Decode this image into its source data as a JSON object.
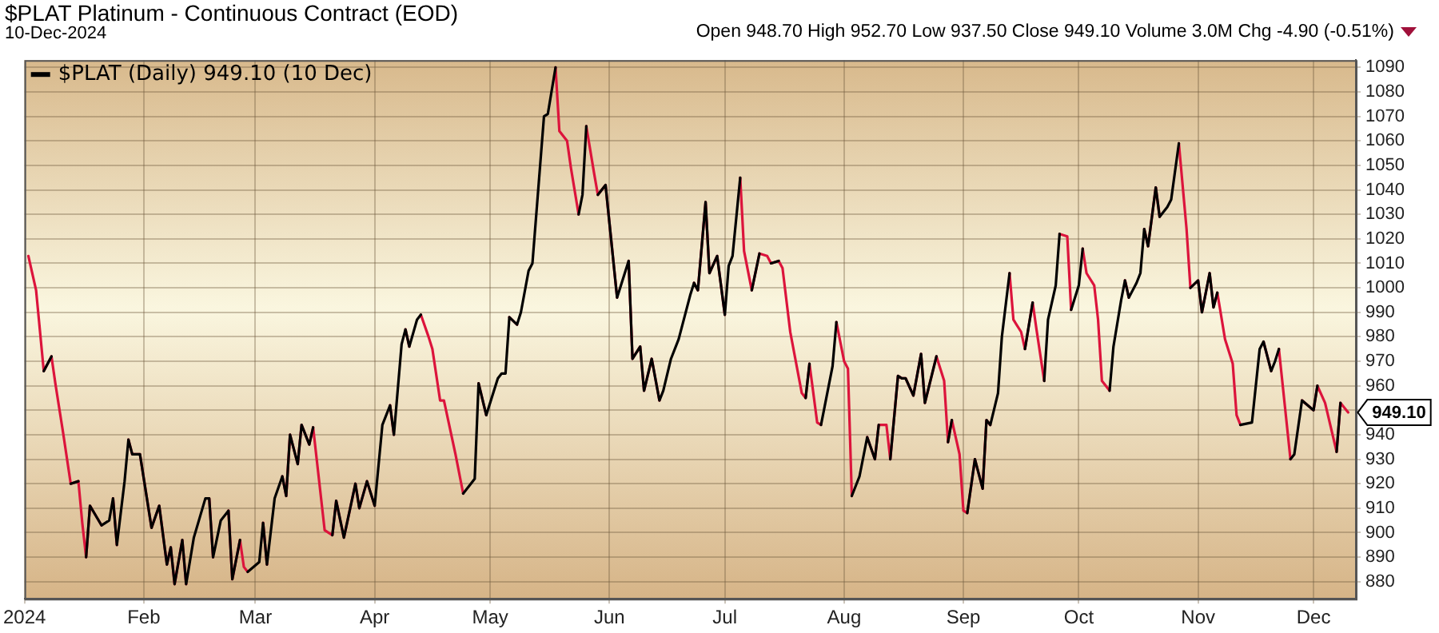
{
  "chart_data": {
    "type": "line",
    "title": "$PLAT Platinum - Continuous Contract (EOD)",
    "subtitle": "10-Dec-2024",
    "annotations": [
      "Open 948.70  High 952.70  Low 937.50  Close 949.10  Volume 3.0M  Chg -4.90 (-0.51%)",
      {
        "text": "949.10",
        "x": "2024-12-10",
        "y": 949.1
      }
    ],
    "x": [
      "2024-01-02",
      "2024-01-04",
      "2024-01-06",
      "2024-01-08",
      "2024-01-09",
      "2024-01-11",
      "2024-01-13",
      "2024-01-15",
      "2024-01-16",
      "2024-01-17",
      "2024-01-18",
      "2024-01-21",
      "2024-01-23",
      "2024-01-24",
      "2024-01-25",
      "2024-01-27",
      "2024-01-28",
      "2024-01-29",
      "2024-01-31",
      "2024-02-03",
      "2024-02-05",
      "2024-02-07",
      "2024-02-08",
      "2024-02-09",
      "2024-02-11",
      "2024-02-12",
      "2024-02-14",
      "2024-02-17",
      "2024-02-18",
      "2024-02-19",
      "2024-02-21",
      "2024-02-23",
      "2024-02-24",
      "2024-02-26",
      "2024-02-27",
      "2024-02-28",
      "2024-03-02",
      "2024-03-03",
      "2024-03-04",
      "2024-03-06",
      "2024-03-08",
      "2024-03-09",
      "2024-03-10",
      "2024-03-12",
      "2024-03-13",
      "2024-03-15",
      "2024-03-16",
      "2024-03-19",
      "2024-03-21",
      "2024-03-22",
      "2024-03-24",
      "2024-03-27",
      "2024-03-28",
      "2024-03-30",
      "2024-04-01",
      "2024-04-03",
      "2024-04-05",
      "2024-04-06",
      "2024-04-08",
      "2024-04-09",
      "2024-04-10",
      "2024-04-12",
      "2024-04-13",
      "2024-04-15",
      "2024-04-16",
      "2024-04-18",
      "2024-04-19",
      "2024-04-22",
      "2024-04-24",
      "2024-04-26",
      "2024-04-27",
      "2024-04-28",
      "2024-04-30",
      "2024-05-03",
      "2024-05-04",
      "2024-05-05",
      "2024-05-06",
      "2024-05-08",
      "2024-05-09",
      "2024-05-11",
      "2024-05-12",
      "2024-05-15",
      "2024-05-16",
      "2024-05-18",
      "2024-05-19",
      "2024-05-21",
      "2024-05-22",
      "2024-05-24",
      "2024-05-25",
      "2024-05-26",
      "2024-05-28",
      "2024-05-29",
      "2024-05-31",
      "2024-06-03",
      "2024-06-04",
      "2024-06-06",
      "2024-06-07",
      "2024-06-09",
      "2024-06-10",
      "2024-06-12",
      "2024-06-14",
      "2024-06-15",
      "2024-06-17",
      "2024-06-19",
      "2024-06-22",
      "2024-06-23",
      "2024-06-24",
      "2024-06-26",
      "2024-06-27",
      "2024-06-29",
      "2024-07-01",
      "2024-07-02",
      "2024-07-03",
      "2024-07-05",
      "2024-07-06",
      "2024-07-08",
      "2024-07-10",
      "2024-07-12",
      "2024-07-13",
      "2024-07-15",
      "2024-07-16",
      "2024-07-18",
      "2024-07-21",
      "2024-07-22",
      "2024-07-23",
      "2024-07-25",
      "2024-07-26",
      "2024-07-29",
      "2024-07-30",
      "2024-08-01",
      "2024-08-02",
      "2024-08-03",
      "2024-08-05",
      "2024-08-07",
      "2024-08-09",
      "2024-08-10",
      "2024-08-12",
      "2024-08-13",
      "2024-08-15",
      "2024-08-16",
      "2024-08-17",
      "2024-08-19",
      "2024-08-21",
      "2024-08-22",
      "2024-08-25",
      "2024-08-27",
      "2024-08-28",
      "2024-08-29",
      "2024-08-31",
      "2024-09-01",
      "2024-09-02",
      "2024-09-04",
      "2024-09-06",
      "2024-09-07",
      "2024-09-08",
      "2024-09-10",
      "2024-09-11",
      "2024-09-13",
      "2024-09-14",
      "2024-09-16",
      "2024-09-17",
      "2024-09-19",
      "2024-09-20",
      "2024-09-22",
      "2024-09-23",
      "2024-09-25",
      "2024-09-26",
      "2024-09-28",
      "2024-09-29",
      "2024-10-01",
      "2024-10-02",
      "2024-10-03",
      "2024-10-05",
      "2024-10-06",
      "2024-10-07",
      "2024-10-09",
      "2024-10-10",
      "2024-10-12",
      "2024-10-13",
      "2024-10-14",
      "2024-10-16",
      "2024-10-17",
      "2024-10-18",
      "2024-10-19",
      "2024-10-21",
      "2024-10-22",
      "2024-10-24",
      "2024-10-25",
      "2024-10-27",
      "2024-10-29",
      "2024-10-30",
      "2024-11-01",
      "2024-11-02",
      "2024-11-04",
      "2024-11-05",
      "2024-11-06",
      "2024-11-08",
      "2024-11-10",
      "2024-11-11",
      "2024-11-12",
      "2024-11-15",
      "2024-11-17",
      "2024-11-18",
      "2024-11-20",
      "2024-11-21",
      "2024-11-22",
      "2024-11-24",
      "2024-11-25",
      "2024-11-26",
      "2024-11-28",
      "2024-12-01",
      "2024-12-02",
      "2024-12-04",
      "2024-12-07",
      "2024-12-08",
      "2024-12-10"
    ],
    "series": [
      {
        "name": "$PLAT (Daily) 949.10 (10 Dec)",
        "color": "#000000",
        "values": [
          null,
          null,
          966,
          972,
          null,
          null,
          920,
          921,
          null,
          890,
          911,
          903,
          905,
          914,
          895,
          921,
          938,
          932,
          932,
          902,
          911,
          887,
          894,
          879,
          897,
          879,
          898,
          914,
          914,
          890,
          905,
          909,
          881,
          897,
          null,
          884,
          888,
          904,
          887,
          914,
          923,
          915,
          940,
          928,
          944,
          936,
          943,
          null,
          899,
          913,
          898,
          920,
          910,
          921,
          911,
          944,
          952,
          940,
          977,
          983,
          976,
          987,
          989,
          null,
          null,
          null,
          null,
          null,
          916,
          920,
          922,
          961,
          948,
          963,
          965,
          965,
          988,
          985,
          990,
          1007,
          1010,
          1070,
          1071,
          1090,
          null,
          null,
          null,
          1030,
          1038,
          1066,
          null,
          1038,
          1042,
          996,
          1001,
          1011,
          971,
          976,
          958,
          971,
          954,
          958,
          971,
          979,
          997,
          1002,
          999,
          1035,
          1006,
          1013,
          989,
          1009,
          1013,
          1045,
          null,
          999,
          1014,
          null,
          1010,
          1011,
          null,
          null,
          null,
          955,
          969,
          null,
          944,
          968,
          986,
          null,
          null,
          915,
          923,
          939,
          930,
          944,
          null,
          930,
          964,
          963,
          963,
          956,
          973,
          953,
          972,
          null,
          937,
          946,
          null,
          null,
          908,
          930,
          918,
          946,
          944,
          957,
          980,
          1006,
          null,
          null,
          975,
          994,
          null,
          962,
          987,
          1001,
          1022,
          null,
          991,
          1001,
          1016,
          null,
          null,
          null,
          null,
          958,
          976,
          995,
          1003,
          996,
          1002,
          1006,
          1024,
          1017,
          1041,
          1029,
          1033,
          1036,
          1059,
          null,
          1000,
          1003,
          990,
          1006,
          992,
          998,
          null,
          null,
          null,
          944,
          945,
          975,
          978,
          966,
          970,
          975,
          null,
          930,
          932,
          954,
          950,
          960,
          null,
          933,
          953,
          null
        ]
      },
      {
        "color": "#dc143c",
        "values": [
          1013,
          999,
          966,
          972,
          961,
          941,
          920,
          921,
          904,
          890,
          911,
          903,
          null,
          914,
          895,
          null,
          938,
          932,
          932,
          902,
          911,
          887,
          894,
          879,
          897,
          879,
          null,
          null,
          914,
          890,
          null,
          909,
          881,
          897,
          886,
          884,
          null,
          904,
          887,
          null,
          923,
          915,
          940,
          928,
          944,
          936,
          943,
          901,
          899,
          913,
          898,
          920,
          910,
          921,
          911,
          null,
          952,
          940,
          null,
          983,
          976,
          null,
          989,
          980,
          975,
          954,
          954,
          932,
          916,
          null,
          null,
          961,
          948,
          null,
          null,
          null,
          988,
          985,
          null,
          null,
          null,
          null,
          null,
          1090,
          1064,
          1060,
          1049,
          1030,
          null,
          1066,
          1047,
          1038,
          1042,
          996,
          null,
          1011,
          971,
          976,
          958,
          971,
          954,
          null,
          null,
          null,
          null,
          1002,
          999,
          1035,
          1006,
          1013,
          989,
          null,
          null,
          1045,
          1015,
          999,
          1014,
          1013,
          1010,
          1011,
          1008,
          982,
          957,
          955,
          969,
          945,
          944,
          null,
          986,
          970,
          967,
          915,
          null,
          939,
          930,
          944,
          944,
          930,
          964,
          963,
          963,
          956,
          973,
          953,
          972,
          962,
          937,
          946,
          932,
          909,
          908,
          930,
          918,
          946,
          944,
          null,
          null,
          1006,
          987,
          982,
          975,
          994,
          983,
          962,
          null,
          null,
          1022,
          1021,
          991,
          null,
          1016,
          1006,
          1001,
          987,
          962,
          958,
          null,
          null,
          1003,
          996,
          null,
          null,
          1024,
          1017,
          1041,
          1029,
          null,
          null,
          1059,
          1024,
          1000,
          1003,
          990,
          1006,
          992,
          998,
          979,
          969,
          948,
          944,
          null,
          null,
          978,
          966,
          null,
          975,
          945,
          930,
          null,
          954,
          950,
          960,
          953,
          933,
          953,
          949.1
        ]
      }
    ],
    "xlim": [
      "2024-01-01",
      "2024-12-12"
    ],
    "xticks": [
      {
        "value": "2024-01-01",
        "label": "2024"
      },
      {
        "value": "2024-02-01",
        "label": "Feb"
      },
      {
        "value": "2024-03-01",
        "label": "Mar"
      },
      {
        "value": "2024-04-01",
        "label": "Apr"
      },
      {
        "value": "2024-05-01",
        "label": "May"
      },
      {
        "value": "2024-06-01",
        "label": "Jun"
      },
      {
        "value": "2024-07-01",
        "label": "Jul"
      },
      {
        "value": "2024-08-01",
        "label": "Aug"
      },
      {
        "value": "2024-09-01",
        "label": "Sep"
      },
      {
        "value": "2024-10-01",
        "label": "Oct"
      },
      {
        "value": "2024-11-01",
        "label": "Nov"
      },
      {
        "value": "2024-12-01",
        "label": "Dec"
      }
    ],
    "ylim": [
      873,
      1093
    ],
    "yticks": [
      880,
      890,
      900,
      910,
      920,
      930,
      940,
      {
        "value": 950,
        "label": null
      },
      960,
      970,
      980,
      990,
      1000,
      1010,
      1020,
      1030,
      1040,
      1050,
      1060,
      1070,
      1080,
      1090
    ],
    "grid": true,
    "legend": "top left",
    "marker": "none",
    "line_style": "solid"
  }
}
